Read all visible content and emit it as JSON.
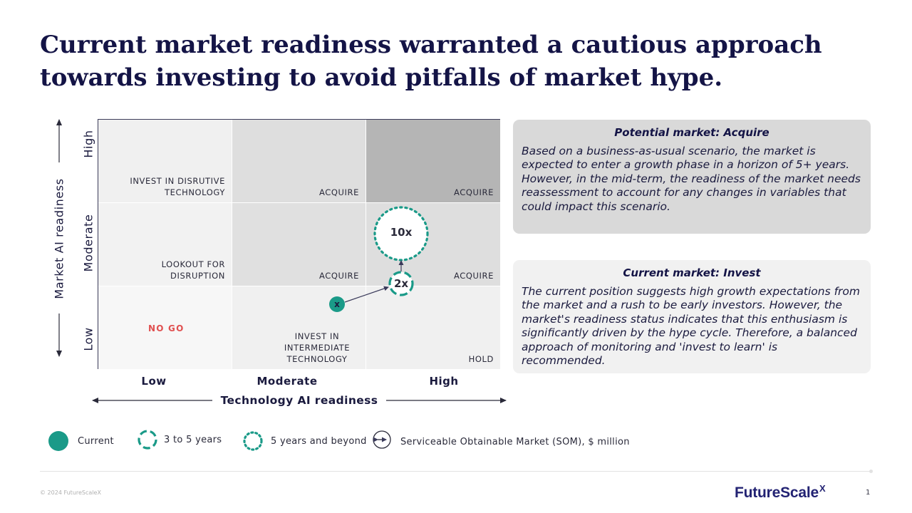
{
  "title": {
    "line1": "Current market readiness warranted a cautious approach",
    "line2": "towards investing to avoid pitfalls of market hype."
  },
  "matrix": {
    "y_axis_title": "Market AI readiness",
    "x_axis_title": "Technology AI readiness",
    "y_ticks": [
      "High",
      "Moderate",
      "Low"
    ],
    "x_ticks": [
      "Low",
      "Moderate",
      "High"
    ],
    "cells": {
      "high_low": "INVEST IN DISRUTIVE TECHNOLOGY",
      "high_moderate": "ACQUIRE",
      "high_high": "ACQUIRE",
      "moderate_low": "LOOKOUT FOR DISRUPTION",
      "moderate_moderate": "ACQUIRE",
      "moderate_high": "ACQUIRE",
      "low_low": "NO GO",
      "low_moderate": "INVEST IN INTERMEDIATE TECHNOLOGY",
      "low_high": "HOLD"
    },
    "markers": {
      "current": "x",
      "three_to_five": "2x",
      "five_plus": "10x"
    },
    "colors": {
      "teal": "#1a9a88",
      "nogo": "#e05050",
      "high_high_cell": "#b5b5b5"
    }
  },
  "boxes": [
    {
      "heading": "Potential market: Acquire",
      "body": "Based on a business-as-usual scenario, the market is expected to enter a growth phase in a horizon of 5+ years. However, in the mid-term, the readiness of the market needs reassessment to account for any changes in variables that could impact this scenario."
    },
    {
      "heading": "Current market: Invest",
      "body": "The current position suggests high growth expectations from the market and a rush to be early investors. However, the market's readiness status indicates that this enthusiasm is significantly driven by the hype cycle. Therefore, a balanced approach of monitoring and 'invest to learn' is recommended."
    }
  ],
  "legend": {
    "current": "Current",
    "three_to_five": "3 to 5 years",
    "five_plus": "5 years and beyond",
    "som": "Serviceable Obtainable Market (SOM), $ million"
  },
  "footer": {
    "copyright": "© 2024 FutureScaleX",
    "logo_text": "FutureScale",
    "logo_mark": "X",
    "page_number": "1"
  }
}
